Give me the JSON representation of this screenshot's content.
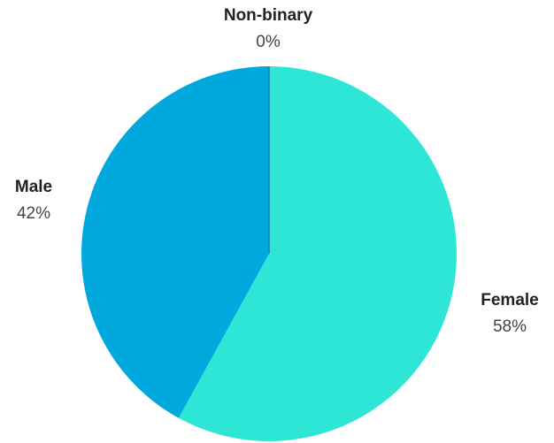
{
  "chart_data": {
    "type": "pie",
    "title": "",
    "slices": [
      {
        "label": "Non-binary",
        "value": 0,
        "display": "0%",
        "color": "#1a7bb0"
      },
      {
        "label": "Female",
        "value": 58,
        "display": "58%",
        "color": "#2ee6d6"
      },
      {
        "label": "Male",
        "value": 42,
        "display": "42%",
        "color": "#00a8de"
      }
    ],
    "start_angle_deg": 0,
    "direction": "clockwise",
    "legend": "none"
  }
}
